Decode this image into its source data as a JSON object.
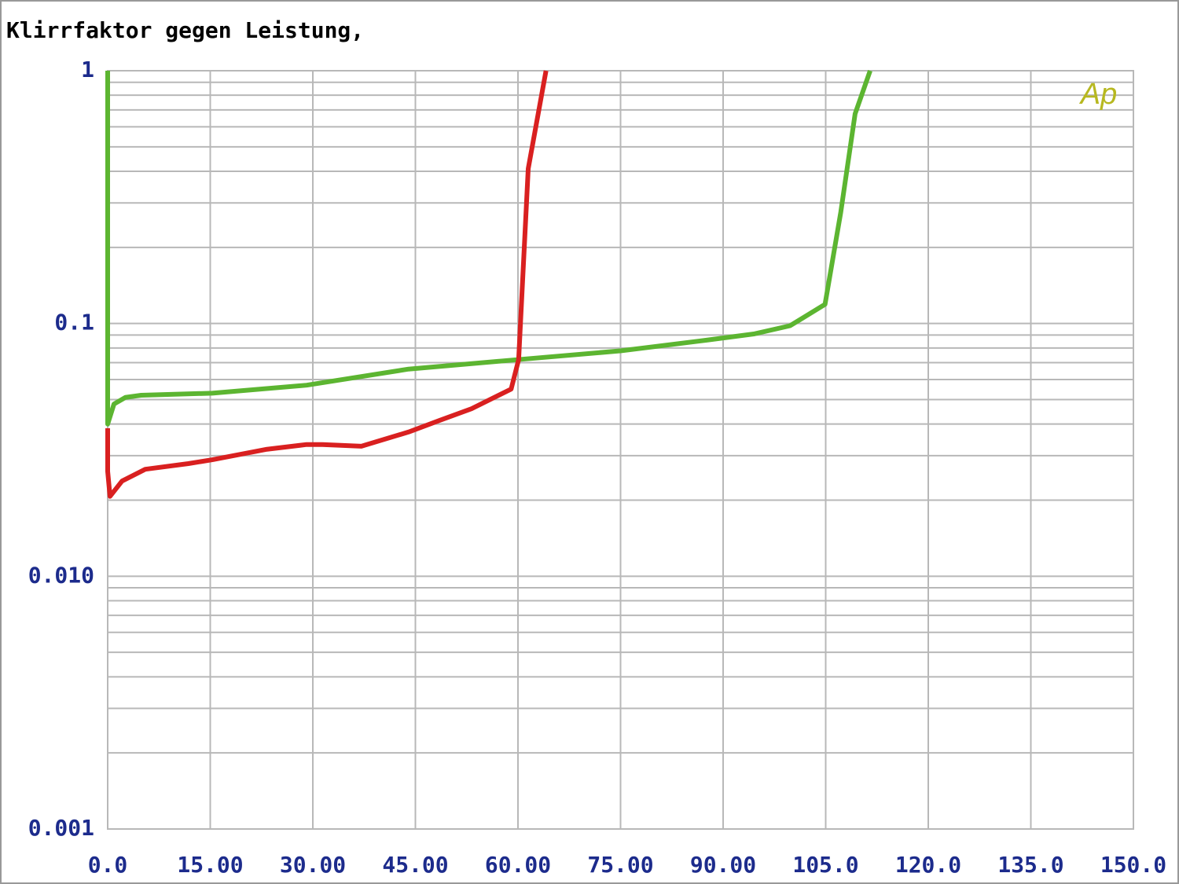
{
  "chart_data": {
    "type": "line",
    "title": "Klirrfaktor gegen Leistung,",
    "watermark": "Ap",
    "log_y": true,
    "grid": true,
    "xlim": [
      0,
      150
    ],
    "xticks": [
      {
        "value": 0,
        "label": "0.0"
      },
      {
        "value": 15,
        "label": "15.00"
      },
      {
        "value": 30,
        "label": "30.00"
      },
      {
        "value": 45,
        "label": "45.00"
      },
      {
        "value": 60,
        "label": "60.00"
      },
      {
        "value": 75,
        "label": "75.00"
      },
      {
        "value": 90,
        "label": "90.00"
      },
      {
        "value": 105,
        "label": "105.0"
      },
      {
        "value": 120,
        "label": "120.0"
      },
      {
        "value": 135,
        "label": "135.0"
      },
      {
        "value": 150,
        "label": "150.0"
      }
    ],
    "ylim": [
      0.001,
      1
    ],
    "yticks": [
      0.001,
      {
        "value": 0.01,
        "label": "0.010"
      },
      0.1,
      1
    ],
    "series": [
      {
        "color": "#5cb531",
        "x": [
          0,
          0,
          0.92,
          2.6,
          4.9,
          15.3,
          29.1,
          44.0,
          60.1,
          75.1,
          87.7,
          94.6,
          99.8,
          104.9,
          107.2,
          109.3,
          111.5
        ],
        "values": [
          1,
          0.04,
          0.048,
          0.051,
          0.052,
          0.053,
          0.057,
          0.066,
          0.072,
          0.078,
          0.086,
          0.091,
          0.098,
          0.119,
          0.275,
          0.675,
          1
        ]
      },
      {
        "color": "#d92020",
        "x": [
          0,
          0,
          0.34,
          2.1,
          5.5,
          11.8,
          15.3,
          23.3,
          29.1,
          31.4,
          37.1,
          44.0,
          48.6,
          53.2,
          59.0,
          60.1,
          61.5,
          64.1
        ],
        "values": [
          0.0385,
          0.026,
          0.0207,
          0.0238,
          0.0265,
          0.0279,
          0.0289,
          0.0318,
          0.0332,
          0.0332,
          0.0327,
          0.0372,
          0.0414,
          0.046,
          0.055,
          0.072,
          0.41,
          1
        ]
      }
    ]
  }
}
